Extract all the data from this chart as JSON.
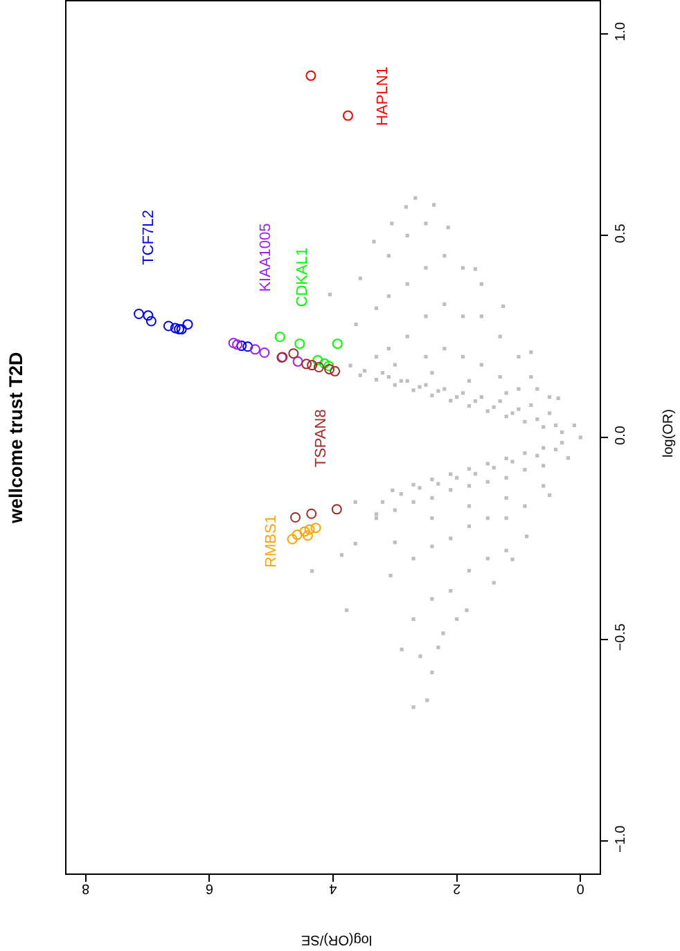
{
  "chart_data": {
    "type": "scatter",
    "title": "wellcome trust T2D",
    "xlabel": "log(OR)/SE",
    "ylabel": "log(OR)",
    "xlim": [
      8.31,
      -0.31
    ],
    "xticks": [
      8,
      6,
      4,
      2,
      0
    ],
    "ylim": [
      -1.08,
      1.08
    ],
    "yticks": [
      {
        "value": -1,
        "label": "−1.0"
      },
      {
        "value": -0.5,
        "label": "−0.5"
      },
      {
        "value": 0,
        "label": "0.0"
      },
      {
        "value": 0.5,
        "label": "0.5"
      },
      {
        "value": 1,
        "label": "1.0"
      }
    ],
    "marker": "circle",
    "grid": false,
    "legend": false,
    "series": [
      {
        "color": "#bebebe",
        "marker": "square",
        "x": [
          0,
          0.3,
          0.6,
          0.9,
          1.2,
          1.5,
          1.8,
          2.1,
          2.4,
          2.7,
          3.0,
          3.3,
          3.56,
          0.1,
          0.36,
          0.8,
          1.25,
          1.7,
          2.14,
          2.37,
          2.67,
          2.82,
          3.05,
          3.34,
          3.56,
          4.05,
          3.63,
          3.49,
          3.72,
          0.5,
          0.5,
          0.8,
          0.8,
          1.0,
          1.0,
          1.0,
          1.3,
          1.3,
          1.3,
          1.6,
          1.6,
          1.6,
          1.6,
          1.9,
          1.9,
          1.9,
          1.9,
          2.2,
          2.2,
          2.2,
          2.2,
          2.5,
          2.5,
          2.5,
          2.5,
          2.5,
          2.8,
          2.8,
          2.8,
          2.8,
          3.1,
          3.1,
          3.1,
          3.1,
          3.3,
          3.3,
          0.4,
          0.7,
          1.1,
          1.4,
          1.7,
          2.0,
          2.3,
          2.6,
          2.9,
          3.2,
          1.2,
          1.8,
          2.4,
          3.0,
          0.7,
          0.3,
          0.6,
          0.9,
          1.2,
          1.5,
          1.8,
          2.1,
          2.4,
          2.7,
          3.04,
          3.64,
          0.2,
          0.5,
          0.87,
          1.1,
          1.4,
          1.84,
          2.22,
          2.59,
          2.4,
          2.48,
          2.7,
          2.89,
          3.07,
          3.78,
          3.86,
          4.34,
          3.64,
          3.3,
          0.6,
          0.6,
          0.9,
          0.9,
          1.2,
          1.2,
          1.2,
          1.5,
          1.5,
          1.5,
          1.8,
          1.8,
          1.8,
          2.1,
          2.1,
          2.1,
          2.4,
          2.4,
          2.4,
          2.7,
          2.7,
          2.7,
          3.0,
          3.0,
          3.3,
          0.4,
          0.7,
          1.1,
          1.4,
          1.7,
          2.0,
          2.3,
          2.6,
          2.9,
          3.2,
          1.2,
          1.8,
          2.4,
          2.0,
          2.3
        ],
        "values": [
          0,
          0.013,
          0.026,
          0.039,
          0.052,
          0.065,
          0.078,
          0.091,
          0.104,
          0.117,
          0.13,
          0.143,
          0.154,
          0.03,
          0.097,
          0.211,
          0.325,
          0.417,
          0.52,
          0.576,
          0.593,
          0.571,
          0.53,
          0.485,
          0.394,
          0.354,
          0.28,
          0.165,
          0.178,
          0.06,
          0.1,
          0.08,
          0.15,
          0.07,
          0.12,
          0.2,
          0.09,
          0.15,
          0.25,
          0.1,
          0.18,
          0.3,
          0.38,
          0.11,
          0.2,
          0.3,
          0.42,
          0.12,
          0.22,
          0.33,
          0.45,
          0.13,
          0.2,
          0.3,
          0.42,
          0.53,
          0.14,
          0.25,
          0.38,
          0.5,
          0.15,
          0.22,
          0.35,
          0.45,
          0.2,
          0.32,
          0.03,
          0.045,
          0.06,
          0.075,
          0.09,
          0.1,
          0.115,
          0.125,
          0.14,
          0.16,
          0.11,
          0.14,
          0.16,
          0.18,
          0.12,
          -0.013,
          -0.026,
          -0.039,
          -0.052,
          -0.065,
          -0.078,
          -0.091,
          -0.104,
          -0.117,
          -0.131,
          -0.16,
          -0.051,
          -0.143,
          -0.245,
          -0.302,
          -0.36,
          -0.428,
          -0.485,
          -0.542,
          -0.582,
          -0.651,
          -0.668,
          -0.525,
          -0.342,
          -0.428,
          -0.291,
          -0.331,
          -0.263,
          -0.2,
          -0.07,
          -0.12,
          -0.08,
          -0.17,
          -0.1,
          -0.2,
          -0.28,
          -0.11,
          -0.2,
          -0.3,
          -0.12,
          -0.22,
          -0.33,
          -0.13,
          -0.25,
          -0.38,
          -0.15,
          -0.27,
          -0.4,
          -0.16,
          -0.3,
          -0.45,
          -0.18,
          -0.26,
          -0.19,
          -0.03,
          -0.045,
          -0.06,
          -0.075,
          -0.09,
          -0.1,
          -0.115,
          -0.125,
          -0.14,
          -0.16,
          -0.15,
          -0.17,
          -0.2,
          -0.45,
          -0.52
        ]
      },
      {
        "name": "TCF7L2",
        "color": "#0000ff",
        "x": [
          7.14,
          6.99,
          6.94,
          6.66,
          6.55,
          6.49,
          6.45,
          6.35,
          5.48,
          5.38
        ],
        "values": [
          0.306,
          0.302,
          0.288,
          0.276,
          0.271,
          0.268,
          0.268,
          0.28,
          0.227,
          0.225
        ]
      },
      {
        "name": "KIAA1005",
        "color": "#a020f0",
        "x": [
          5.61,
          5.55,
          5.26,
          5.11,
          4.83,
          4.57
        ],
        "values": [
          0.234,
          0.23,
          0.218,
          0.21,
          0.198,
          0.188
        ]
      },
      {
        "name": "CDKAL1",
        "color": "#00ff00",
        "x": [
          4.86,
          4.54,
          3.93,
          4.25,
          4.14,
          4.07
        ],
        "values": [
          0.249,
          0.232,
          0.232,
          0.191,
          0.183,
          0.177
        ]
      },
      {
        "name": "TSPAN8",
        "color": "#a52a2a",
        "x": [
          4.82,
          4.64,
          4.43,
          4.34,
          4.23,
          4.06,
          3.97,
          4.61,
          4.35,
          3.94
        ],
        "values": [
          0.199,
          0.208,
          0.182,
          0.179,
          0.174,
          0.169,
          0.164,
          -0.198,
          -0.189,
          -0.178
        ]
      },
      {
        "name": "RMBS1",
        "color": "#ffa500",
        "x": [
          4.66,
          4.58,
          4.46,
          4.41,
          4.38,
          4.28
        ],
        "values": [
          -0.252,
          -0.241,
          -0.233,
          -0.243,
          -0.228,
          -0.224
        ]
      },
      {
        "name": "HAPLN1",
        "color": "#ff0000",
        "x": [
          4.36,
          3.76
        ],
        "values": [
          0.896,
          0.797
        ]
      }
    ]
  }
}
